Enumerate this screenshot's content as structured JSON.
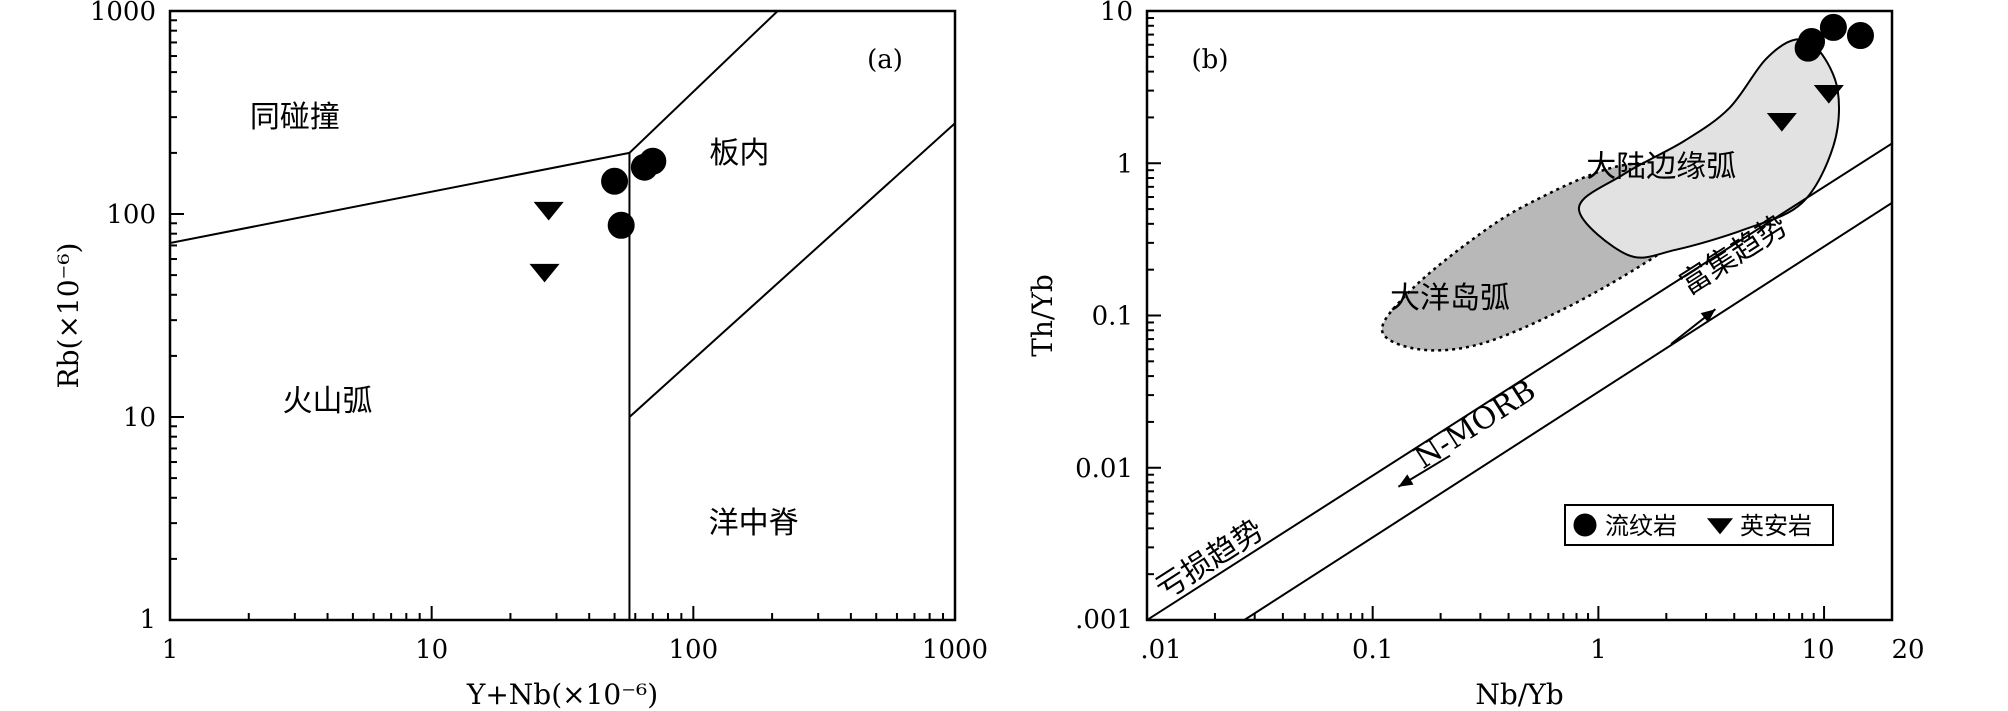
{
  "chart_data": [
    {
      "type": "scatter",
      "panel_label": "(a)",
      "xscale": "log",
      "yscale": "log",
      "xlim": [
        1,
        1000
      ],
      "ylim": [
        1,
        1000
      ],
      "x_ticks": [
        "1",
        "10",
        "100",
        "1000"
      ],
      "x_tick_values": [
        1,
        10,
        100,
        1000
      ],
      "y_ticks": [
        "1",
        "10",
        "100",
        "1000"
      ],
      "y_tick_values": [
        1,
        10,
        100,
        1000
      ],
      "xlabel": "Y+Nb(×10⁻⁶)",
      "ylabel": "Rb(×10⁻⁶)",
      "field_labels": [
        "同碰撞",
        "板内",
        "火山弧",
        "洋中脊"
      ],
      "field_label_positions": [
        [
          3,
          300
        ],
        [
          150,
          200
        ],
        [
          4,
          12
        ],
        [
          170,
          3
        ]
      ],
      "boundaries": [
        [
          [
            1,
            72
          ],
          [
            57,
            200
          ]
        ],
        [
          [
            57,
            200
          ],
          [
            210,
            1000
          ]
        ],
        [
          [
            57,
            1
          ],
          [
            57,
            200
          ]
        ],
        [
          [
            57,
            10
          ],
          [
            1000,
            280
          ]
        ]
      ],
      "series": [
        {
          "name": "流纹岩",
          "marker": "circle",
          "points": [
            [
              50,
              145
            ],
            [
              65,
              170
            ],
            [
              70,
              182
            ],
            [
              53,
              88
            ]
          ]
        },
        {
          "name": "英安岩",
          "marker": "triangle-down",
          "points": [
            [
              28,
              105
            ],
            [
              27,
              52
            ]
          ]
        }
      ],
      "grid": false
    },
    {
      "type": "scatter",
      "panel_label": "(b)",
      "xscale": "log",
      "yscale": "log",
      "xlim": [
        0.01,
        20
      ],
      "ylim": [
        0.001,
        10
      ],
      "x_ticks": [
        ".01",
        "0.1",
        "1",
        "10",
        "20"
      ],
      "x_tick_values": [
        0.01,
        0.1,
        1,
        10,
        20
      ],
      "y_ticks": [
        ".001",
        "0.01",
        "0.1",
        "1",
        "10"
      ],
      "y_tick_values": [
        0.001,
        0.01,
        0.1,
        1,
        10
      ],
      "xlabel": "Nb/Yb",
      "ylabel": "Th/Yb",
      "regions": [
        {
          "name": "大洋岛弧",
          "label_position": [
            0.22,
            0.13
          ],
          "color": "#b8b8b8",
          "border": "dotted",
          "outline": [
            [
              0.11,
              0.08
            ],
            [
              0.16,
              0.06
            ],
            [
              0.3,
              0.065
            ],
            [
              0.7,
              0.11
            ],
            [
              1.6,
              0.22
            ],
            [
              2.8,
              0.4
            ],
            [
              3.5,
              0.65
            ],
            [
              2.5,
              0.95
            ],
            [
              1.2,
              0.95
            ],
            [
              0.5,
              0.55
            ],
            [
              0.28,
              0.32
            ],
            [
              0.15,
              0.15
            ]
          ]
        },
        {
          "name": "大陆边缘弧",
          "label_position": [
            1.9,
            0.95
          ],
          "color": "#e2e2e2",
          "border": "solid",
          "outline": [
            [
              0.82,
              0.5
            ],
            [
              1.35,
              0.25
            ],
            [
              2.2,
              0.27
            ],
            [
              4.5,
              0.37
            ],
            [
              8,
              0.55
            ],
            [
              11,
              1.3
            ],
            [
              11.5,
              3.0
            ],
            [
              9.5,
              5.5
            ],
            [
              7.5,
              6.5
            ],
            [
              5.5,
              4.8
            ],
            [
              3.8,
              2.3
            ],
            [
              2.4,
              1.4
            ],
            [
              1.3,
              0.85
            ]
          ]
        }
      ],
      "array_lines": [
        [
          [
            0.01,
            0.001
          ],
          [
            20,
            1.35
          ]
        ],
        [
          [
            0.027,
            0.001
          ],
          [
            20,
            0.55
          ]
        ]
      ],
      "trend_labels": {
        "mid": "N-MORB",
        "enriched": "富集趋势",
        "depleted": "亏损趋势"
      },
      "trend_positions": {
        "mid": [
          0.3,
          0.017
        ],
        "enriched": [
          4.2,
          0.22
        ],
        "depleted": [
          0.02,
          0.0022
        ]
      },
      "trend_arrows": [
        {
          "from": [
            2.1,
            0.065
          ],
          "to": [
            3.3,
            0.11
          ]
        },
        {
          "from": [
            0.22,
            0.012
          ],
          "to": [
            0.13,
            0.0075
          ]
        }
      ],
      "legend": {
        "placement": "bottom-right",
        "entries": [
          {
            "name": "流纹岩",
            "marker": "circle"
          },
          {
            "name": "英安岩",
            "marker": "triangle-down"
          }
        ]
      },
      "series": [
        {
          "name": "流纹岩",
          "marker": "circle",
          "points": [
            [
              8.5,
              5.7
            ],
            [
              8.8,
              6.3
            ],
            [
              11,
              7.8
            ],
            [
              14.5,
              6.9
            ]
          ]
        },
        {
          "name": "英安岩",
          "marker": "triangle-down",
          "points": [
            [
              6.5,
              1.9
            ],
            [
              10.5,
              2.9
            ]
          ]
        }
      ],
      "grid": false
    }
  ]
}
